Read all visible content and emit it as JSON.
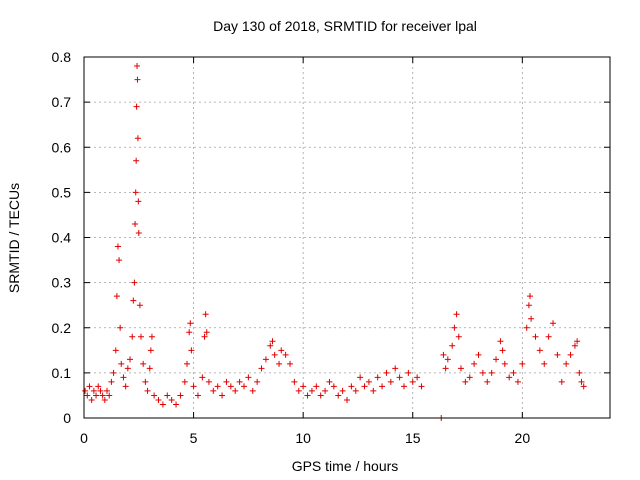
{
  "chart_data": {
    "type": "scatter",
    "title": "Day 130 of 2018, SRMTID for receiver lpal",
    "xlabel": "GPS time / hours",
    "ylabel": "SRMTID / TECUs",
    "xlim": [
      0,
      24
    ],
    "ylim": [
      0,
      0.8
    ],
    "xticks": [
      0,
      5,
      10,
      15,
      20
    ],
    "yticks": [
      0,
      0.1,
      0.2,
      0.3,
      0.4,
      0.5,
      0.6,
      0.7,
      0.8
    ],
    "grid": true,
    "marker": "+",
    "color": "#e00000",
    "series": [
      {
        "name": "SRMTID",
        "points": [
          [
            0.05,
            0.06
          ],
          [
            0.15,
            0.05
          ],
          [
            0.25,
            0.07
          ],
          [
            0.35,
            0.04
          ],
          [
            0.45,
            0.06
          ],
          [
            0.55,
            0.05
          ],
          [
            0.65,
            0.07
          ],
          [
            0.75,
            0.06
          ],
          [
            0.85,
            0.05
          ],
          [
            0.95,
            0.04
          ],
          [
            1.05,
            0.06
          ],
          [
            1.15,
            0.05
          ],
          [
            1.25,
            0.08
          ],
          [
            1.35,
            0.1
          ],
          [
            1.45,
            0.15
          ],
          [
            1.5,
            0.27
          ],
          [
            1.55,
            0.38
          ],
          [
            1.6,
            0.35
          ],
          [
            1.65,
            0.2
          ],
          [
            1.7,
            0.12
          ],
          [
            1.8,
            0.09
          ],
          [
            1.9,
            0.07
          ],
          [
            2.0,
            0.11
          ],
          [
            2.1,
            0.13
          ],
          [
            2.2,
            0.18
          ],
          [
            2.25,
            0.26
          ],
          [
            2.3,
            0.3
          ],
          [
            2.33,
            0.43
          ],
          [
            2.36,
            0.5
          ],
          [
            2.38,
            0.57
          ],
          [
            2.4,
            0.69
          ],
          [
            2.42,
            0.78
          ],
          [
            2.44,
            0.75
          ],
          [
            2.46,
            0.62
          ],
          [
            2.48,
            0.48
          ],
          [
            2.5,
            0.41
          ],
          [
            2.55,
            0.25
          ],
          [
            2.6,
            0.18
          ],
          [
            2.7,
            0.12
          ],
          [
            2.8,
            0.08
          ],
          [
            2.9,
            0.06
          ],
          [
            3.0,
            0.11
          ],
          [
            3.05,
            0.15
          ],
          [
            3.1,
            0.18
          ],
          [
            3.2,
            0.05
          ],
          [
            3.4,
            0.04
          ],
          [
            3.6,
            0.03
          ],
          [
            3.8,
            0.05
          ],
          [
            4.0,
            0.04
          ],
          [
            4.2,
            0.03
          ],
          [
            4.4,
            0.05
          ],
          [
            4.6,
            0.08
          ],
          [
            4.7,
            0.12
          ],
          [
            4.8,
            0.19
          ],
          [
            4.85,
            0.21
          ],
          [
            4.9,
            0.15
          ],
          [
            5.0,
            0.07
          ],
          [
            5.2,
            0.05
          ],
          [
            5.4,
            0.09
          ],
          [
            5.5,
            0.18
          ],
          [
            5.55,
            0.23
          ],
          [
            5.6,
            0.19
          ],
          [
            5.7,
            0.08
          ],
          [
            5.9,
            0.06
          ],
          [
            6.1,
            0.07
          ],
          [
            6.3,
            0.05
          ],
          [
            6.5,
            0.08
          ],
          [
            6.7,
            0.07
          ],
          [
            6.9,
            0.06
          ],
          [
            7.1,
            0.08
          ],
          [
            7.3,
            0.07
          ],
          [
            7.5,
            0.09
          ],
          [
            7.7,
            0.06
          ],
          [
            7.9,
            0.08
          ],
          [
            8.1,
            0.11
          ],
          [
            8.3,
            0.13
          ],
          [
            8.5,
            0.16
          ],
          [
            8.6,
            0.17
          ],
          [
            8.7,
            0.14
          ],
          [
            8.9,
            0.12
          ],
          [
            9.0,
            0.15
          ],
          [
            9.2,
            0.14
          ],
          [
            9.4,
            0.12
          ],
          [
            9.6,
            0.08
          ],
          [
            9.8,
            0.06
          ],
          [
            10.0,
            0.07
          ],
          [
            10.2,
            0.05
          ],
          [
            10.4,
            0.06
          ],
          [
            10.6,
            0.07
          ],
          [
            10.8,
            0.05
          ],
          [
            11.0,
            0.06
          ],
          [
            11.2,
            0.08
          ],
          [
            11.4,
            0.07
          ],
          [
            11.6,
            0.05
          ],
          [
            11.8,
            0.06
          ],
          [
            12.0,
            0.04
          ],
          [
            12.2,
            0.07
          ],
          [
            12.4,
            0.06
          ],
          [
            12.6,
            0.09
          ],
          [
            12.8,
            0.07
          ],
          [
            13.0,
            0.08
          ],
          [
            13.2,
            0.06
          ],
          [
            13.4,
            0.09
          ],
          [
            13.6,
            0.07
          ],
          [
            13.8,
            0.1
          ],
          [
            14.0,
            0.08
          ],
          [
            14.2,
            0.11
          ],
          [
            14.4,
            0.09
          ],
          [
            14.6,
            0.07
          ],
          [
            14.8,
            0.1
          ],
          [
            15.0,
            0.08
          ],
          [
            15.2,
            0.09
          ],
          [
            15.4,
            0.07
          ],
          [
            16.3,
            0.0
          ],
          [
            16.4,
            0.14
          ],
          [
            16.5,
            0.11
          ],
          [
            16.6,
            0.13
          ],
          [
            16.8,
            0.16
          ],
          [
            16.9,
            0.2
          ],
          [
            17.0,
            0.23
          ],
          [
            17.1,
            0.18
          ],
          [
            17.2,
            0.11
          ],
          [
            17.4,
            0.08
          ],
          [
            17.6,
            0.09
          ],
          [
            17.8,
            0.12
          ],
          [
            18.0,
            0.14
          ],
          [
            18.2,
            0.1
          ],
          [
            18.4,
            0.08
          ],
          [
            18.6,
            0.1
          ],
          [
            18.8,
            0.13
          ],
          [
            19.0,
            0.17
          ],
          [
            19.1,
            0.15
          ],
          [
            19.2,
            0.12
          ],
          [
            19.4,
            0.09
          ],
          [
            19.6,
            0.1
          ],
          [
            19.8,
            0.08
          ],
          [
            20.0,
            0.12
          ],
          [
            20.2,
            0.2
          ],
          [
            20.3,
            0.25
          ],
          [
            20.35,
            0.27
          ],
          [
            20.4,
            0.22
          ],
          [
            20.6,
            0.18
          ],
          [
            20.8,
            0.15
          ],
          [
            21.0,
            0.12
          ],
          [
            21.2,
            0.18
          ],
          [
            21.4,
            0.21
          ],
          [
            21.6,
            0.14
          ],
          [
            21.8,
            0.08
          ],
          [
            22.0,
            0.12
          ],
          [
            22.2,
            0.14
          ],
          [
            22.4,
            0.16
          ],
          [
            22.5,
            0.17
          ],
          [
            22.6,
            0.1
          ],
          [
            22.7,
            0.08
          ],
          [
            22.8,
            0.07
          ]
        ]
      }
    ]
  }
}
